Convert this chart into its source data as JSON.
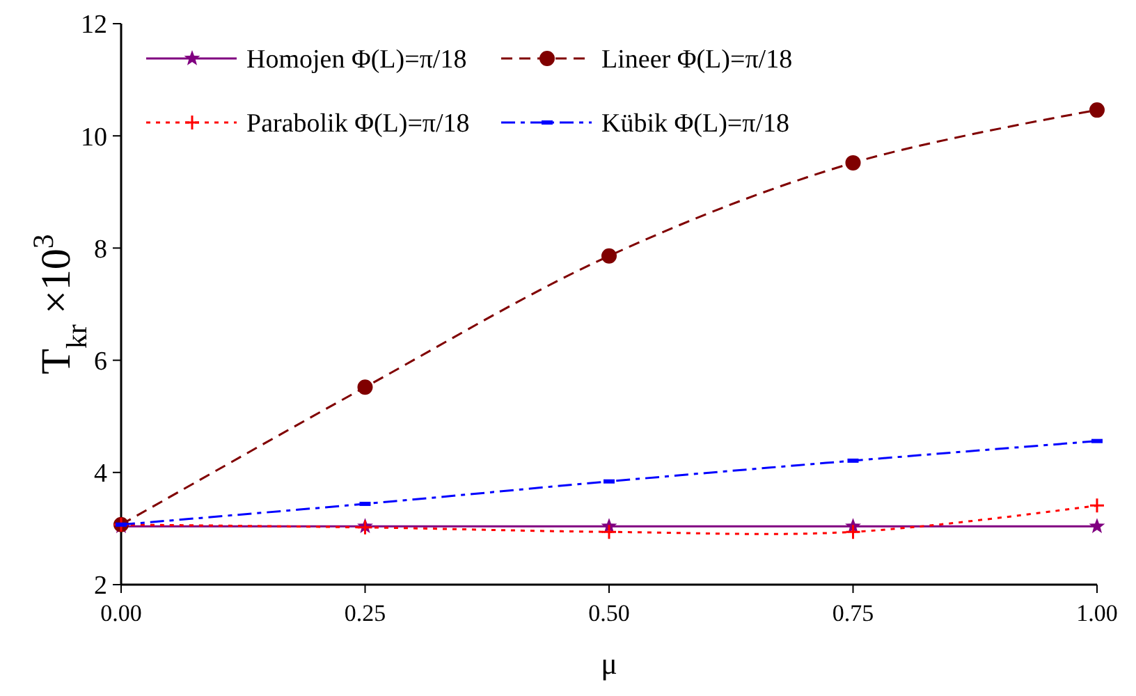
{
  "chart_data": {
    "type": "line",
    "xlabel": "μ",
    "ylabel": "T$_{kr}$ ×10$^{3}$",
    "x": [
      0,
      0.25,
      0.5,
      0.75,
      1
    ],
    "xlim": [
      0,
      1
    ],
    "xticks": [
      {
        "value": 0,
        "label": "0.00"
      },
      {
        "value": 0.25,
        "label": "0.25"
      },
      {
        "value": 0.5,
        "label": "0.50"
      },
      {
        "value": 0.75,
        "label": "0.75"
      },
      {
        "value": 1,
        "label": "1.00"
      }
    ],
    "ylim": [
      2,
      12
    ],
    "yticks": [
      2,
      4,
      6,
      8,
      10,
      12
    ],
    "grid": false,
    "legend": "top left",
    "series": [
      {
        "name": "Homojen Φ(L)=π/18",
        "color": "#800080",
        "marker": "star",
        "line_style": "solid",
        "values": [
          3.04,
          3.04,
          3.04,
          3.04,
          3.04
        ]
      },
      {
        "name": "Lineer Φ(L)=π/18",
        "color": "#800000",
        "marker": "circle",
        "line_style": "dashed",
        "values": [
          3.07,
          5.52,
          7.86,
          9.52,
          10.46
        ]
      },
      {
        "name": "Parabolik Φ(L)=π/18",
        "color": "#ff0000",
        "marker": "cross",
        "line_style": "dotted",
        "values": [
          3.07,
          3.02,
          2.94,
          2.94,
          3.41
        ]
      },
      {
        "name": "Kübik Φ(L)=π/18",
        "color": "#0000ff",
        "marker": "square",
        "line_style": "dashdot",
        "values": [
          3.07,
          3.44,
          3.84,
          4.21,
          4.56
        ]
      }
    ]
  }
}
